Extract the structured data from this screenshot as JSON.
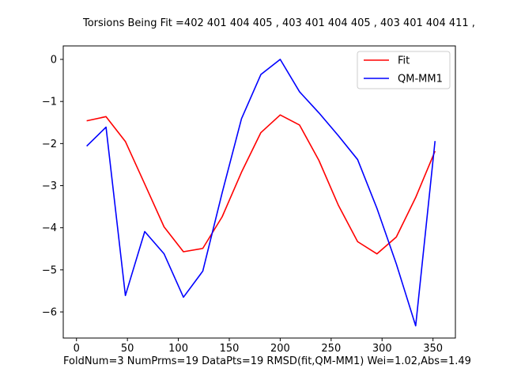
{
  "chart_data": {
    "type": "line",
    "title": "Torsions Being Fit =402 401 404 405 , 403 401 404 405 , 403 401 404 411 ,",
    "footer": "FoldNum=3 NumPrms=19 DataPts=19 RMSD(fit,QM-MM1) Wei=1.02,Abs=1.49",
    "xlabel": "",
    "ylabel": "",
    "xlim": [
      -13,
      372
    ],
    "ylim": [
      -6.62,
      0.32
    ],
    "xticks": [
      0,
      50,
      100,
      150,
      200,
      250,
      300,
      350
    ],
    "yticks": [
      0,
      -1,
      -2,
      -3,
      -4,
      -5,
      -6
    ],
    "grid": false,
    "legend_position": "upper right",
    "series": [
      {
        "name": "Fit",
        "color": "#ff0000",
        "x": [
          10,
          29,
          48,
          67,
          86,
          105,
          124,
          143,
          162,
          181,
          200,
          219,
          238,
          257,
          276,
          295,
          314,
          333,
          352
        ],
        "y": [
          -1.46,
          -1.36,
          -1.95,
          -2.96,
          -3.98,
          -4.57,
          -4.49,
          -3.74,
          -2.68,
          -1.74,
          -1.32,
          -1.56,
          -2.4,
          -3.46,
          -4.33,
          -4.62,
          -4.22,
          -3.28,
          -2.18
        ]
      },
      {
        "name": "QM-MM1",
        "color": "#0000ff",
        "x": [
          10,
          29,
          48,
          67,
          86,
          105,
          124,
          143,
          162,
          181,
          200,
          219,
          238,
          257,
          276,
          295,
          314,
          333,
          352
        ],
        "y": [
          -2.06,
          -1.61,
          -5.61,
          -4.09,
          -4.62,
          -5.65,
          -5.03,
          -3.17,
          -1.41,
          -0.36,
          0.0,
          -0.77,
          -1.27,
          -1.81,
          -2.38,
          -3.54,
          -4.86,
          -6.33,
          -1.94
        ]
      }
    ]
  }
}
